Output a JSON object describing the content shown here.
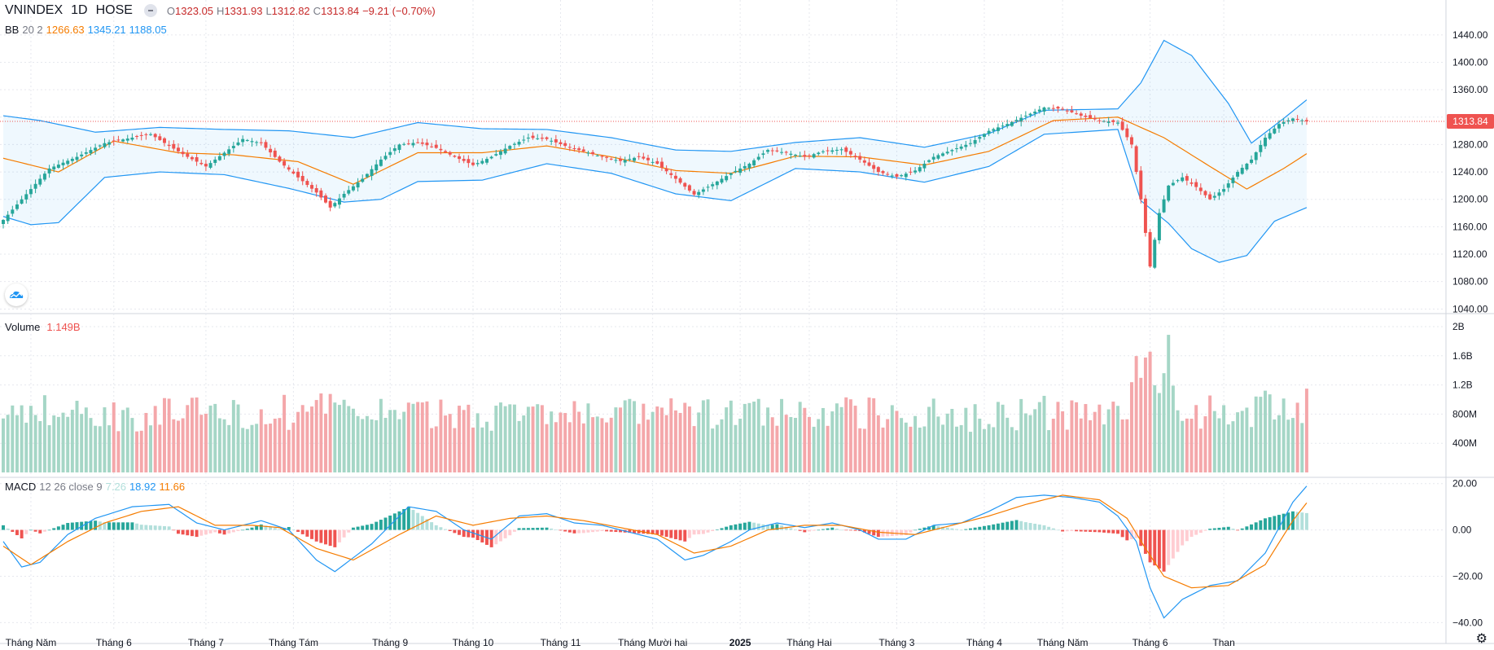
{
  "header": {
    "symbol": "VNINDEX",
    "interval": "1D",
    "exchange": "HOSE",
    "o_label": "O",
    "o_val": "1323.05",
    "h_label": "H",
    "h_val": "1331.93",
    "l_label": "L",
    "l_val": "1312.82",
    "c_label": "C",
    "c_val": "1313.84",
    "change": "−9.21 (−0.70%)"
  },
  "bb_legend": {
    "name": "BB",
    "params": "20 2",
    "basis": "1266.63",
    "upper": "1345.21",
    "lower": "1188.05"
  },
  "volume_legend": {
    "name": "Volume",
    "value": "1.149B"
  },
  "macd_legend": {
    "name": "MACD",
    "params": "12 26 close 9",
    "hist": "7.26",
    "macd": "18.92",
    "signal": "11.66"
  },
  "last_price_label": "1313.84",
  "colors": {
    "up": "#26a69a",
    "down": "#ef5350",
    "vol_up": "#a5d6c6",
    "vol_down": "#f4a7aa",
    "bb_band": "#2196f3",
    "bb_basis": "#f57c00",
    "macd_line": "#2196f3",
    "signal_line": "#f57c00",
    "hist_up_strong": "#26a69a",
    "hist_up_weak": "#b2dfdb",
    "hist_down_strong": "#ef5350",
    "hist_down_weak": "#ffcdd2"
  },
  "icons": {
    "logo": "tradingview-cloud-icon",
    "settings": "gear-icon",
    "hide": "hide-legend-icon"
  },
  "chart_data": [
    {
      "type": "candlestick",
      "title": "VNINDEX 1D HOSE",
      "x_ticks": [
        "Tháng Năm",
        "Tháng 6",
        "Tháng 7",
        "Tháng Tám",
        "Tháng 9",
        "Tháng 10",
        "Tháng 11",
        "Tháng Mười hai",
        "2025",
        "Tháng Hai",
        "Tháng 3",
        "Tháng 4",
        "Tháng Năm",
        "Tháng 6",
        "Tháng 7"
      ],
      "x_tick_labels": [
        "Tháng Năm",
        "Tháng 6",
        "Tháng 7",
        "Tháng Tám",
        "Tháng 9",
        "Tháng 10",
        "Tháng 11",
        "Tháng Mười hai",
        "2025",
        "Tháng Hai",
        "Tháng 3",
        "Tháng 4",
        "Tháng Năm",
        "Tháng 6",
        "Than"
      ],
      "y_ticks": [
        1040,
        1080,
        1120,
        1160,
        1200,
        1240,
        1280,
        1320,
        1360,
        1400,
        1440
      ],
      "y_tick_labels": [
        "1040.00",
        "1080.00",
        "1120.00",
        "1160.00",
        "1200.00",
        "1240.00",
        "1280.00",
        "",
        "1360.00",
        "1400.00",
        "1440.00"
      ],
      "ylim": [
        1038,
        1460
      ],
      "anchors": [
        [
          0,
          1170
        ],
        [
          4,
          1200
        ],
        [
          10,
          1245
        ],
        [
          16,
          1262
        ],
        [
          22,
          1282
        ],
        [
          28,
          1290
        ],
        [
          32,
          1295
        ],
        [
          36,
          1278
        ],
        [
          40,
          1262
        ],
        [
          44,
          1248
        ],
        [
          48,
          1268
        ],
        [
          52,
          1288
        ],
        [
          56,
          1282
        ],
        [
          60,
          1255
        ],
        [
          64,
          1232
        ],
        [
          68,
          1210
        ],
        [
          71,
          1188
        ],
        [
          74,
          1208
        ],
        [
          78,
          1230
        ],
        [
          82,
          1258
        ],
        [
          86,
          1280
        ],
        [
          90,
          1283
        ],
        [
          94,
          1275
        ],
        [
          98,
          1262
        ],
        [
          102,
          1250
        ],
        [
          106,
          1262
        ],
        [
          110,
          1278
        ],
        [
          114,
          1290
        ],
        [
          118,
          1288
        ],
        [
          122,
          1278
        ],
        [
          126,
          1270
        ],
        [
          130,
          1262
        ],
        [
          134,
          1256
        ],
        [
          138,
          1262
        ],
        [
          142,
          1252
        ],
        [
          146,
          1230
        ],
        [
          150,
          1207
        ],
        [
          154,
          1222
        ],
        [
          158,
          1238
        ],
        [
          162,
          1252
        ],
        [
          166,
          1272
        ],
        [
          170,
          1268
        ],
        [
          174,
          1262
        ],
        [
          178,
          1270
        ],
        [
          182,
          1273
        ],
        [
          186,
          1258
        ],
        [
          190,
          1240
        ],
        [
          194,
          1233
        ],
        [
          198,
          1242
        ],
        [
          202,
          1262
        ],
        [
          206,
          1272
        ],
        [
          210,
          1282
        ],
        [
          214,
          1300
        ],
        [
          218,
          1310
        ],
        [
          222,
          1322
        ],
        [
          226,
          1334
        ],
        [
          230,
          1332
        ],
        [
          234,
          1322
        ],
        [
          238,
          1315
        ],
        [
          242,
          1312
        ],
        [
          245,
          1280
        ],
        [
          247,
          1200
        ],
        [
          249,
          1102
        ],
        [
          251,
          1180
        ],
        [
          253,
          1220
        ],
        [
          256,
          1232
        ],
        [
          259,
          1218
        ],
        [
          262,
          1200
        ],
        [
          265,
          1215
        ],
        [
          268,
          1240
        ],
        [
          271,
          1258
        ],
        [
          274,
          1290
        ],
        [
          277,
          1310
        ],
        [
          280,
          1318
        ],
        [
          283,
          1313.84
        ]
      ],
      "bb_basis": [
        [
          0,
          1260
        ],
        [
          12,
          1240
        ],
        [
          24,
          1285
        ],
        [
          38,
          1268
        ],
        [
          50,
          1265
        ],
        [
          64,
          1255
        ],
        [
          76,
          1222
        ],
        [
          90,
          1268
        ],
        [
          104,
          1268
        ],
        [
          118,
          1278
        ],
        [
          132,
          1262
        ],
        [
          146,
          1242
        ],
        [
          158,
          1238
        ],
        [
          172,
          1263
        ],
        [
          186,
          1262
        ],
        [
          200,
          1250
        ],
        [
          214,
          1270
        ],
        [
          228,
          1315
        ],
        [
          242,
          1320
        ],
        [
          252,
          1290
        ],
        [
          262,
          1248
        ],
        [
          270,
          1215
        ],
        [
          278,
          1245
        ],
        [
          283,
          1266.63
        ]
      ],
      "bb_upper": [
        [
          0,
          1322
        ],
        [
          8,
          1315
        ],
        [
          20,
          1298
        ],
        [
          34,
          1305
        ],
        [
          48,
          1302
        ],
        [
          62,
          1300
        ],
        [
          76,
          1290
        ],
        [
          90,
          1312
        ],
        [
          104,
          1303
        ],
        [
          118,
          1302
        ],
        [
          132,
          1290
        ],
        [
          146,
          1272
        ],
        [
          158,
          1270
        ],
        [
          172,
          1283
        ],
        [
          186,
          1290
        ],
        [
          200,
          1276
        ],
        [
          214,
          1296
        ],
        [
          226,
          1330
        ],
        [
          242,
          1332
        ],
        [
          247,
          1370
        ],
        [
          252,
          1432
        ],
        [
          258,
          1410
        ],
        [
          266,
          1340
        ],
        [
          271,
          1282
        ],
        [
          278,
          1318
        ],
        [
          283,
          1345.21
        ]
      ],
      "bb_lower": [
        [
          0,
          1175
        ],
        [
          6,
          1163
        ],
        [
          12,
          1166
        ],
        [
          22,
          1232
        ],
        [
          34,
          1240
        ],
        [
          48,
          1236
        ],
        [
          62,
          1216
        ],
        [
          74,
          1196
        ],
        [
          82,
          1200
        ],
        [
          90,
          1226
        ],
        [
          104,
          1228
        ],
        [
          118,
          1252
        ],
        [
          132,
          1238
        ],
        [
          146,
          1208
        ],
        [
          158,
          1198
        ],
        [
          172,
          1245
        ],
        [
          186,
          1240
        ],
        [
          200,
          1225
        ],
        [
          214,
          1248
        ],
        [
          226,
          1295
        ],
        [
          242,
          1302
        ],
        [
          247,
          1198
        ],
        [
          253,
          1165
        ],
        [
          258,
          1128
        ],
        [
          264,
          1108
        ],
        [
          270,
          1118
        ],
        [
          276,
          1168
        ],
        [
          283,
          1188.05
        ]
      ]
    },
    {
      "type": "bar",
      "title": "Volume",
      "y_ticks": [
        0.4,
        0.8,
        1.2,
        1.6,
        2.0
      ],
      "y_tick_labels": [
        "400M",
        "800M",
        "1.2B",
        "1.6B",
        "2B"
      ],
      "ylim": [
        0,
        2.1
      ],
      "unit": "B",
      "last_value": 1.149
    },
    {
      "type": "line+histogram",
      "title": "MACD 12 26 close 9",
      "y_ticks": [
        -40,
        -20,
        0,
        20
      ],
      "y_tick_labels": [
        "−40.00",
        "−20.00",
        "0.00",
        "20.00"
      ],
      "ylim": [
        -42,
        22
      ],
      "macd": [
        [
          0,
          -5
        ],
        [
          4,
          -16
        ],
        [
          8,
          -14
        ],
        [
          14,
          -2
        ],
        [
          20,
          5
        ],
        [
          28,
          10
        ],
        [
          36,
          11
        ],
        [
          42,
          3
        ],
        [
          48,
          0
        ],
        [
          56,
          4
        ],
        [
          62,
          0
        ],
        [
          68,
          -13
        ],
        [
          72,
          -18
        ],
        [
          80,
          -6
        ],
        [
          88,
          10
        ],
        [
          94,
          8
        ],
        [
          100,
          0
        ],
        [
          106,
          -4
        ],
        [
          112,
          6
        ],
        [
          118,
          7
        ],
        [
          124,
          3
        ],
        [
          130,
          2
        ],
        [
          136,
          -1
        ],
        [
          142,
          -4
        ],
        [
          148,
          -13
        ],
        [
          152,
          -11
        ],
        [
          158,
          -5
        ],
        [
          162,
          0
        ],
        [
          168,
          3
        ],
        [
          174,
          1
        ],
        [
          180,
          3
        ],
        [
          186,
          0
        ],
        [
          190,
          -4
        ],
        [
          196,
          -4
        ],
        [
          202,
          2
        ],
        [
          208,
          3
        ],
        [
          214,
          8
        ],
        [
          220,
          14
        ],
        [
          226,
          15
        ],
        [
          232,
          14
        ],
        [
          238,
          12
        ],
        [
          242,
          6
        ],
        [
          246,
          -5
        ],
        [
          249,
          -25
        ],
        [
          252,
          -38
        ],
        [
          256,
          -30
        ],
        [
          262,
          -24
        ],
        [
          268,
          -22
        ],
        [
          274,
          -10
        ],
        [
          280,
          12
        ],
        [
          283,
          18.92
        ]
      ],
      "signal": [
        [
          0,
          -7
        ],
        [
          6,
          -15
        ],
        [
          14,
          -5
        ],
        [
          22,
          3
        ],
        [
          30,
          8
        ],
        [
          38,
          10
        ],
        [
          46,
          2
        ],
        [
          54,
          2
        ],
        [
          60,
          1
        ],
        [
          68,
          -8
        ],
        [
          76,
          -13
        ],
        [
          86,
          -2
        ],
        [
          94,
          6
        ],
        [
          102,
          2
        ],
        [
          110,
          5
        ],
        [
          118,
          6
        ],
        [
          126,
          4
        ],
        [
          134,
          1
        ],
        [
          142,
          -2
        ],
        [
          150,
          -10
        ],
        [
          158,
          -7
        ],
        [
          166,
          0
        ],
        [
          174,
          2
        ],
        [
          182,
          2
        ],
        [
          190,
          -1
        ],
        [
          198,
          -2
        ],
        [
          206,
          2
        ],
        [
          214,
          6
        ],
        [
          222,
          11
        ],
        [
          230,
          15
        ],
        [
          238,
          13
        ],
        [
          244,
          5
        ],
        [
          248,
          -8
        ],
        [
          252,
          -20
        ],
        [
          258,
          -25
        ],
        [
          266,
          -24
        ],
        [
          274,
          -15
        ],
        [
          280,
          4
        ],
        [
          283,
          11.66
        ]
      ],
      "last_hist": 7.26
    }
  ]
}
